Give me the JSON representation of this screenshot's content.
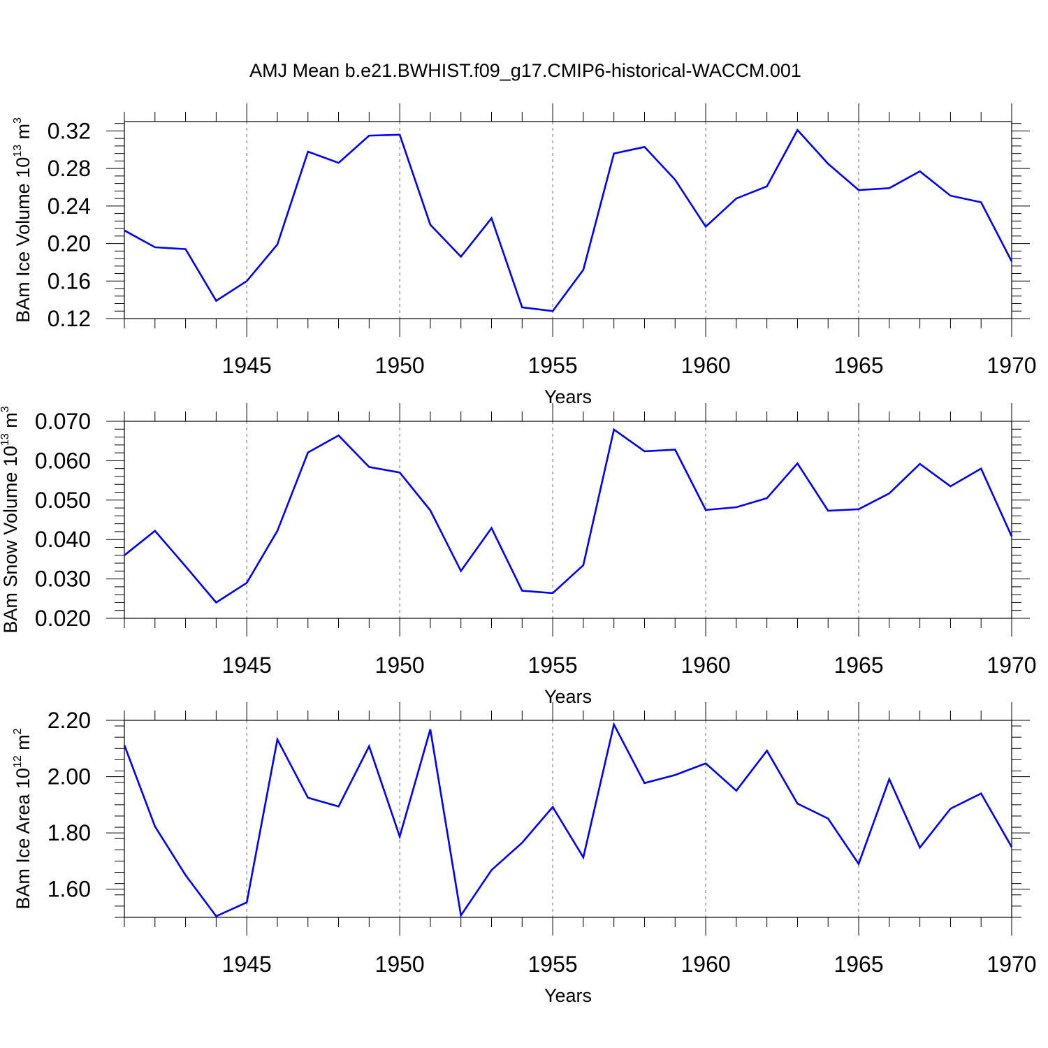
{
  "chart_data": {
    "title": "AMJ Mean b.e21.BWHIST.f09_g17.CMIP6-historical-WACCM.001",
    "years": [
      1941,
      1942,
      1943,
      1944,
      1945,
      1946,
      1947,
      1948,
      1949,
      1950,
      1951,
      1952,
      1953,
      1954,
      1955,
      1956,
      1957,
      1958,
      1959,
      1960,
      1961,
      1962,
      1963,
      1964,
      1965,
      1966,
      1967,
      1968,
      1969,
      1970
    ],
    "xlim": [
      1941,
      1970
    ],
    "xticks": [
      1945,
      1950,
      1955,
      1960,
      1965,
      1970
    ],
    "xticklabels": [
      "1945",
      "1950",
      "1955",
      "1960",
      "1965",
      "1970"
    ],
    "xlabel": "Years",
    "line_color": "#0000ff",
    "panels": [
      {
        "type": "line",
        "ylabel": "BAm Ice Volume 10",
        "ylabel_exp": "13",
        "ylabel_unit": "m",
        "ylabel_unit_exp": "3",
        "ylim": [
          0.12,
          0.33
        ],
        "yticks": [
          0.12,
          0.16,
          0.2,
          0.24,
          0.28,
          0.32
        ],
        "yticklabels": [
          "0.12",
          "0.16",
          "0.20",
          "0.24",
          "0.28",
          "0.32"
        ],
        "values": [
          0.214,
          0.196,
          0.194,
          0.139,
          0.16,
          0.199,
          0.298,
          0.286,
          0.315,
          0.316,
          0.22,
          0.186,
          0.227,
          0.132,
          0.128,
          0.172,
          0.296,
          0.303,
          0.268,
          0.218,
          0.248,
          0.261,
          0.321,
          0.285,
          0.257,
          0.259,
          0.277,
          0.251,
          0.244,
          0.181
        ]
      },
      {
        "type": "line",
        "ylabel": "BAm Snow Volume 10",
        "ylabel_exp": "13",
        "ylabel_unit": "m",
        "ylabel_unit_exp": "3",
        "ylim": [
          0.02,
          0.07
        ],
        "yticks": [
          0.02,
          0.03,
          0.04,
          0.05,
          0.06,
          0.07
        ],
        "yticklabels": [
          "0.020",
          "0.030",
          "0.040",
          "0.050",
          "0.060",
          "0.070"
        ],
        "values": [
          0.036,
          0.0422,
          0.0332,
          0.024,
          0.029,
          0.0422,
          0.0621,
          0.0664,
          0.0584,
          0.057,
          0.0474,
          0.032,
          0.0429,
          0.027,
          0.0264,
          0.0335,
          0.0679,
          0.0624,
          0.0628,
          0.0475,
          0.0482,
          0.0505,
          0.0593,
          0.0473,
          0.0477,
          0.0517,
          0.0592,
          0.0535,
          0.058,
          0.0408
        ]
      },
      {
        "type": "line",
        "ylabel": "BAm Ice Area 10",
        "ylabel_exp": "12",
        "ylabel_unit": "m",
        "ylabel_unit_exp": "2",
        "ylim": [
          1.5,
          2.2
        ],
        "yticks": [
          1.6,
          1.8,
          2.0,
          2.2
        ],
        "yticklabels": [
          "1.60",
          "1.80",
          "2.00",
          "2.20"
        ],
        "values": [
          2.112,
          1.823,
          1.65,
          1.504,
          1.553,
          2.132,
          1.925,
          1.894,
          2.108,
          1.787,
          2.168,
          1.507,
          1.668,
          1.765,
          1.892,
          1.713,
          2.185,
          1.977,
          2.006,
          2.047,
          1.95,
          2.092,
          1.904,
          1.851,
          1.69,
          1.991,
          1.748,
          1.886,
          1.94,
          1.75
        ]
      }
    ]
  }
}
